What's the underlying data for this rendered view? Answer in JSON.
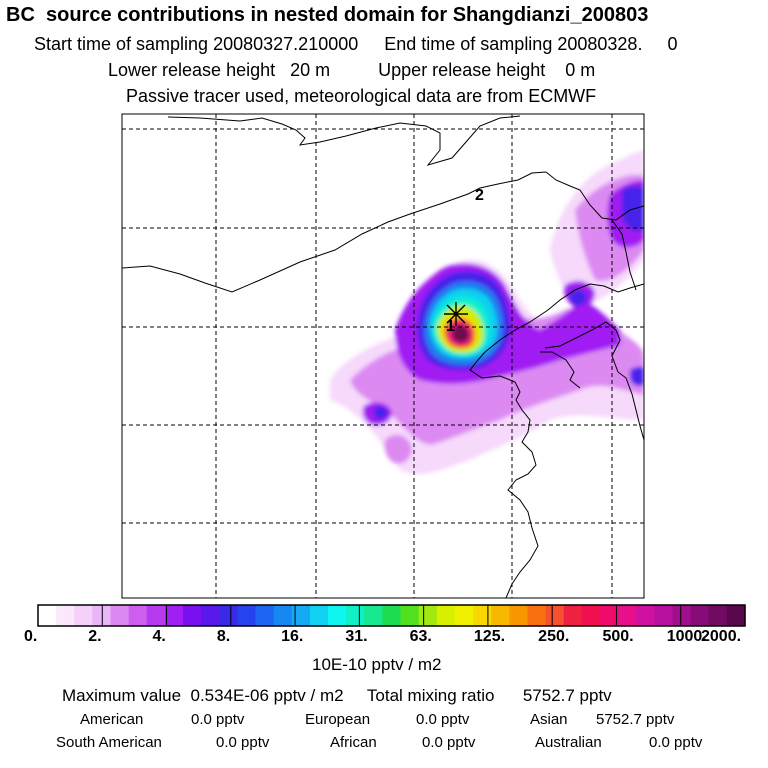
{
  "header": {
    "title": "BC  source contributions in nested domain for Shangdianzi_200803",
    "start_label": "Start time of sampling",
    "start_value": "20080327.210000",
    "end_label": "End time of sampling",
    "end_value": "20080328.",
    "end_extra": "0",
    "lower_label": "Lower release height",
    "lower_value": "20 m",
    "upper_label": "Upper release height",
    "upper_value": "0 m",
    "passive_note": "Passive tracer used, meteorological data are from ECMWF"
  },
  "map": {
    "markers": [
      {
        "label": "1",
        "kind": "receptor-site"
      },
      {
        "label": "2",
        "kind": "region-label"
      }
    ],
    "plume_colors": [
      "#f6d9fb",
      "#dc8af2",
      "#a11ff2",
      "#4620ea",
      "#1e7ff0",
      "#10d2f0",
      "#0ff0cf",
      "#c8f000",
      "#f0e000",
      "#f55030",
      "#e0107a",
      "#6a0a4e"
    ]
  },
  "colorbar": {
    "tick_labels": [
      "0.",
      "2.",
      "4.",
      "8.",
      "16.",
      "31.",
      "63.",
      "125.",
      "250.",
      "500.",
      "1000.",
      "2000."
    ],
    "unit": "10E-10 pptv / m2",
    "colors": [
      "#ffffff",
      "#fbe8fd",
      "#f4d0fb",
      "#eab6f9",
      "#dc8af2",
      "#cd5ff0",
      "#b63af0",
      "#a11ff2",
      "#7a10ef",
      "#5a18ea",
      "#3a2ae6",
      "#2643f0",
      "#1e66f2",
      "#1787f2",
      "#14a9f2",
      "#10d2f0",
      "#0ff5f0",
      "#0ff0c6",
      "#18e890",
      "#1edc50",
      "#50e020",
      "#a0e810",
      "#d8f000",
      "#f0f000",
      "#f8d800",
      "#f8b800",
      "#f89800",
      "#f87010",
      "#f55030",
      "#f02040",
      "#f01050",
      "#f00a6c",
      "#e8108a",
      "#d010a0",
      "#b8109e",
      "#a0108c",
      "#880c78",
      "#700a62",
      "#5a084e"
    ]
  },
  "stats": {
    "max_label": "Maximum value",
    "max_value": "0.534E-06 pptv / m2",
    "total_label": "Total mixing ratio",
    "total_value": "5752.7 pptv",
    "regions": [
      {
        "name": "American",
        "value": "0.0 pptv"
      },
      {
        "name": "European",
        "value": "0.0 pptv"
      },
      {
        "name": "Asian",
        "value": "5752.7 pptv"
      },
      {
        "name": "South American",
        "value": "0.0 pptv"
      },
      {
        "name": "African",
        "value": "0.0 pptv"
      },
      {
        "name": "Australian",
        "value": "0.0 pptv"
      }
    ]
  }
}
